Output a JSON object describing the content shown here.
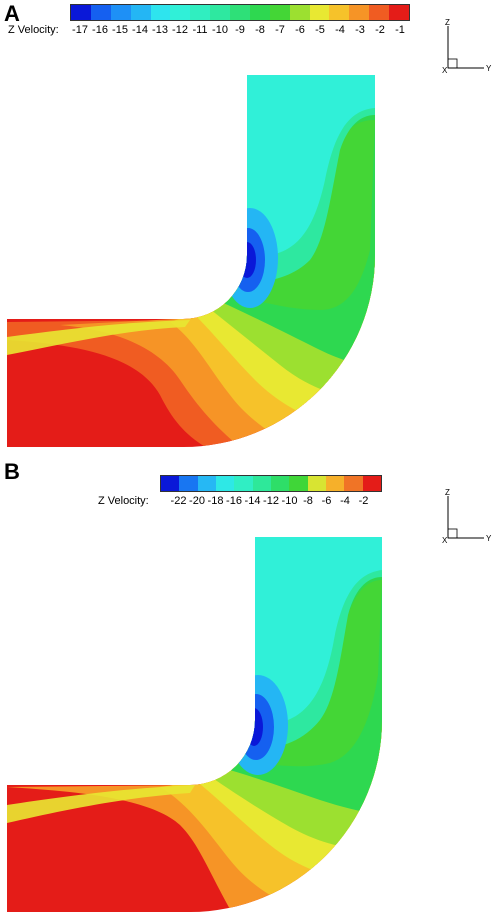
{
  "panels": [
    {
      "letter": "A",
      "legend_label": "Z Velocity:",
      "legend_ticks": [
        "-17",
        "-16",
        "-15",
        "-14",
        "-13",
        "-12",
        "-11",
        "-10",
        "-9",
        "-8",
        "-7",
        "-6",
        "-5",
        "-4",
        "-3",
        "-2",
        "-1"
      ],
      "legend_colors": [
        "#0a18d8",
        "#1560f0",
        "#1e90f6",
        "#24b6f4",
        "#2ee4ee",
        "#30f0d8",
        "#30eec0",
        "#2ee8a0",
        "#2ee078",
        "#2ed850",
        "#44d636",
        "#9ce030",
        "#e8e832",
        "#f6c22a",
        "#f69426",
        "#f05c22",
        "#e41c18"
      ],
      "axis": {
        "z": "Z",
        "y": "Y",
        "x": "X"
      }
    },
    {
      "letter": "B",
      "legend_label": "Z Velocity:",
      "legend_ticks": [
        "-22",
        "-20",
        "-18",
        "-16",
        "-14",
        "-12",
        "-10",
        "-8",
        "-6",
        "-4",
        "-2"
      ],
      "legend_colors": [
        "#0a18d8",
        "#1876f2",
        "#26b8f4",
        "#2ee8e6",
        "#30eec4",
        "#2ee89a",
        "#2ede68",
        "#40d638",
        "#d8e432",
        "#f6b02a",
        "#f07426",
        "#e41c18"
      ],
      "axis": {
        "z": "Z",
        "y": "Y",
        "x": "X"
      }
    }
  ],
  "flow_colors": {
    "outer_red": "#e41c18",
    "red_orange": "#f05c22",
    "orange": "#f69426",
    "yellow_orange": "#f6c22a",
    "yellow": "#e8e832",
    "yellow_green": "#9ce030",
    "green": "#2ed850",
    "green2": "#44d636",
    "cyan": "#30f0d8",
    "cyan_green": "#2ee8a0",
    "light_blue": "#24b6f4",
    "blue": "#1560f0",
    "deep_blue": "#0a18d8"
  }
}
